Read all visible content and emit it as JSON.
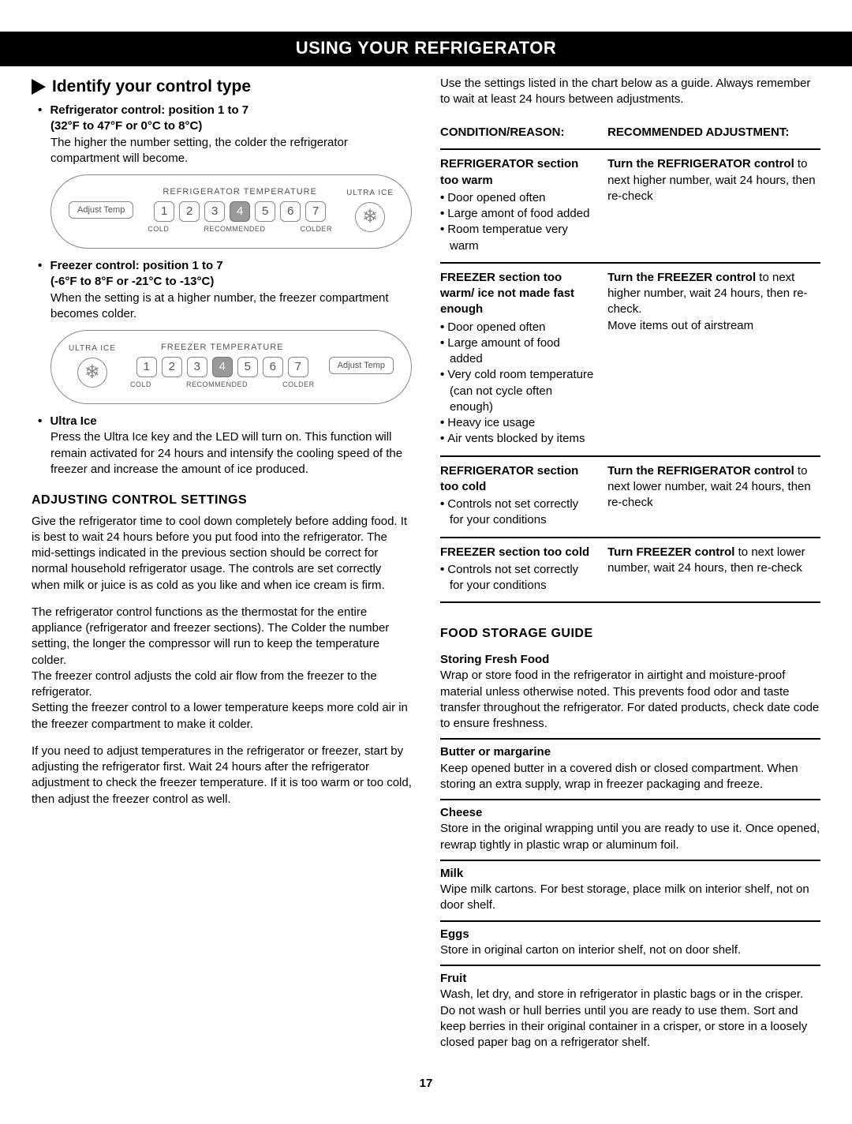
{
  "header": "USING YOUR REFRIGERATOR",
  "left": {
    "sectionTitle": "Identify your control type",
    "fridgeControl": {
      "head": "Refrigerator control: position 1 to 7",
      "range": "(32°F to 47°F or 0°C to 8°C)",
      "body": "The higher the number setting, the colder the refrigerator compartment will become."
    },
    "freezerControl": {
      "head": "Freezer control: position 1 to 7",
      "range": "(-6°F to 8°F or -21°C to -13°C)",
      "body": "When the setting is at a higher number, the freezer compartment becomes colder."
    },
    "ultraIce": {
      "head": "Ultra Ice",
      "body": "Press the Ultra Ice key and the LED will turn on. This function will remain activated for 24 hours and intensify the cooling speed of the freezer and increase the amount of ice produced."
    },
    "panel": {
      "adjust": "Adjust\nTemp",
      "refrigLabel": "REFRIGERATOR TEMPERATURE",
      "freezerLabel": "FREEZER TEMPERATURE",
      "ultraLabel": "ULTRA ICE",
      "dials": [
        "1",
        "2",
        "3",
        "4",
        "5",
        "6",
        "7"
      ],
      "selectedIndex": 3,
      "scale": {
        "cold": "COLD",
        "rec": "RECOMMENDED",
        "colder": "COLDER"
      }
    },
    "adjHeading": "ADJUSTING CONTROL SETTINGS",
    "adjP1": "Give the refrigerator time to cool down completely before adding food. It is best to wait 24 hours before you put food into the refrigerator. The mid-settings indicated in the previous section should be correct for normal household refrigerator usage. The controls are set correctly when milk or juice is as cold as you like and when ice cream is firm.",
    "adjP2": "The refrigerator control functions as the thermostat for the entire appliance (refrigerator and freezer sections). The Colder the number setting, the longer the compressor will run to keep the temperature colder.",
    "adjP3": "The freezer control adjusts the cold air flow from the freezer to the refrigerator.",
    "adjP4": "Setting the freezer control to a lower temperature keeps more cold air in the freezer compartment to make it colder.",
    "adjP5": "If you need to adjust temperatures in the refrigerator or freezer, start by adjusting the refrigerator first. Wait 24 hours after the refrigerator adjustment to check the freezer temperature. If it is too warm or too cold, then adjust the freezer control as well."
  },
  "right": {
    "intro": "Use the settings listed in the chart below as a guide. Always remember to wait at least 24 hours between adjustments.",
    "th1": "CONDITION/REASON:",
    "th2": "RECOMMENDED ADJUSTMENT:",
    "rows": [
      {
        "title": "REFRIGERATOR section too warm",
        "reasons": [
          "Door opened often",
          "Large amont of food added",
          "Room temperatue very warm"
        ],
        "fixBold": "Turn the REFRIGERATOR control",
        "fixRest": " to next higher number, wait 24 hours, then re-check"
      },
      {
        "title": "FREEZER section too warm/ ice not made fast enough",
        "reasons": [
          "Door opened often",
          "Large amount of food added",
          "Very cold room temperature (can not cycle often enough)",
          "Heavy ice usage",
          "Air vents blocked by items"
        ],
        "fixBold": "Turn the FREEZER control",
        "fixRest": " to next higher number, wait 24 hours, then re-check.\nMove items out of airstream"
      },
      {
        "title": "REFRIGERATOR section too cold",
        "reasons": [
          "Controls not set correctly for your conditions"
        ],
        "fixBold": "Turn the REFRIGERATOR control",
        "fixRest": " to next lower number, wait 24 hours, then re-check"
      },
      {
        "title": "FREEZER section too cold",
        "reasons": [
          "Controls not set correctly for your conditions"
        ],
        "fixBold": "Turn FREEZER control",
        "fixRest": " to next lower number, wait 24 hours, then re-check"
      }
    ],
    "foodHeading": "FOOD STORAGE GUIDE",
    "food": [
      {
        "head": "Storing Fresh Food",
        "body": "Wrap or store food in the refrigerator in airtight and moisture-proof material unless otherwise noted. This prevents food odor and taste transfer throughout the refrigerator. For dated products, check date code to ensure freshness."
      },
      {
        "head": "Butter or margarine",
        "body": "Keep opened butter in a covered dish or closed compartment. When storing an extra supply, wrap in freezer packaging and freeze."
      },
      {
        "head": "Cheese",
        "body": "Store in the original wrapping until you are ready to use it. Once opened, rewrap tightly in plastic wrap or aluminum foil."
      },
      {
        "head": "Milk",
        "body": "Wipe milk cartons. For best storage, place milk on interior shelf, not on door shelf."
      },
      {
        "head": "Eggs",
        "body": "Store in original carton on interior shelf, not on door shelf."
      },
      {
        "head": "Fruit",
        "body": "Wash, let dry, and store in refrigerator in plastic bags or in the crisper. Do not wash or hull berries until you are ready to use them. Sort and keep berries in their original container in a crisper, or store in a loosely closed paper bag on a refrigerator shelf."
      }
    ]
  },
  "pageNumber": "17"
}
